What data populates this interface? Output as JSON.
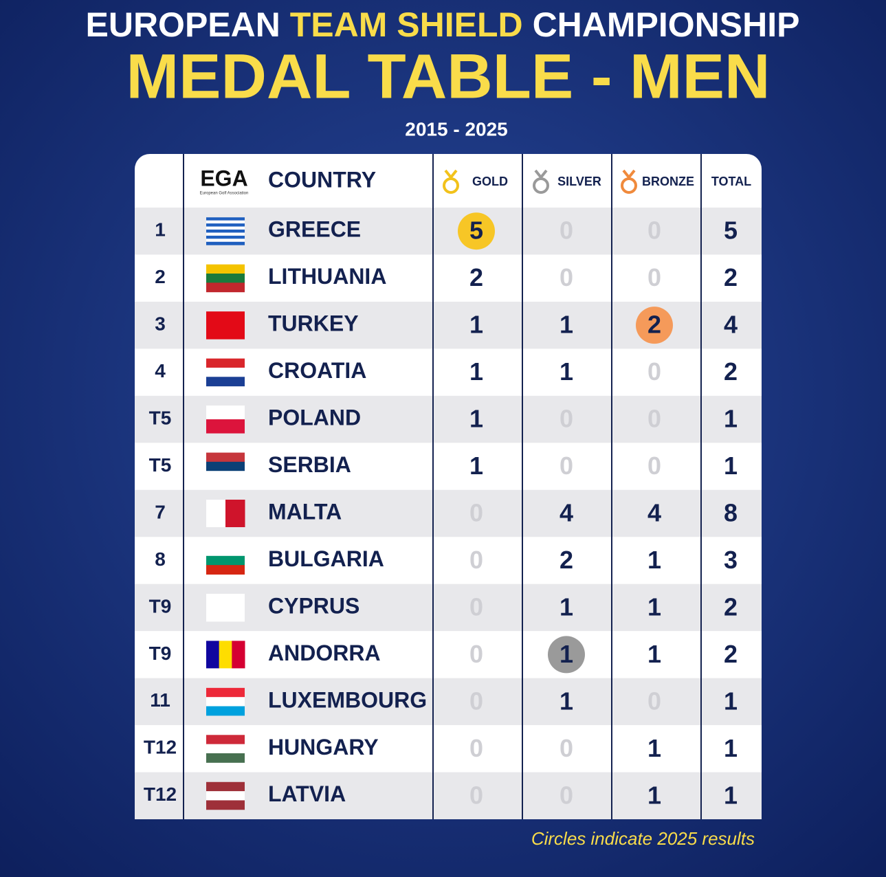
{
  "header": {
    "title_parts": [
      "EUROPEAN",
      "TEAM SHIELD",
      "CHAMPIONSHIP"
    ],
    "headline": "MEDAL TABLE - MEN",
    "years": "2015 - 2025"
  },
  "logo": {
    "mark": "EGA",
    "caption": "European Golf Association"
  },
  "table": {
    "columns": {
      "country": "COUNTRY",
      "gold": "GOLD",
      "silver": "SILVER",
      "bronze": "BRONZE",
      "total": "TOTAL"
    },
    "circle_colors": {
      "gold": "#f7c626",
      "silver": "#9a9a9a",
      "bronze": "#f59a5a"
    },
    "rows": [
      {
        "rank": "1",
        "country": "GREECE",
        "gold": 5,
        "silver": 0,
        "bronze": 0,
        "total": 5,
        "circle": "gold",
        "flag": [
          "#1f5fbf",
          "#ffffff",
          "#1f5fbf",
          "#ffffff",
          "#1f5fbf",
          "#ffffff",
          "#1f5fbf",
          "#ffffff",
          "#1f5fbf"
        ]
      },
      {
        "rank": "2",
        "country": "LITHUANIA",
        "gold": 2,
        "silver": 0,
        "bronze": 0,
        "total": 2,
        "flag": [
          "#f4c300",
          "#1a7a3c",
          "#c1272d"
        ]
      },
      {
        "rank": "3",
        "country": "TURKEY",
        "gold": 1,
        "silver": 1,
        "bronze": 2,
        "total": 4,
        "circle": "bronze",
        "flag": [
          "#e30a17"
        ]
      },
      {
        "rank": "4",
        "country": "CROATIA",
        "gold": 1,
        "silver": 1,
        "bronze": 0,
        "total": 2,
        "flag": [
          "#d9262b",
          "#ffffff",
          "#1b3f94"
        ]
      },
      {
        "rank": "T5",
        "country": "POLAND",
        "gold": 1,
        "silver": 0,
        "bronze": 0,
        "total": 1,
        "flag": [
          "#ffffff",
          "#dc143c"
        ]
      },
      {
        "rank": "T5",
        "country": "SERBIA",
        "gold": 1,
        "silver": 0,
        "bronze": 0,
        "total": 1,
        "flag": [
          "#c6363c",
          "#0c4076",
          "#ffffff"
        ]
      },
      {
        "rank": "7",
        "country": "MALTA",
        "gold": 0,
        "silver": 4,
        "bronze": 4,
        "total": 8,
        "flag_dir": "v",
        "flag": [
          "#ffffff",
          "#cf142b"
        ]
      },
      {
        "rank": "8",
        "country": "BULGARIA",
        "gold": 0,
        "silver": 2,
        "bronze": 1,
        "total": 3,
        "flag": [
          "#ffffff",
          "#00966e",
          "#d62612"
        ]
      },
      {
        "rank": "T9",
        "country": "CYPRUS",
        "gold": 0,
        "silver": 1,
        "bronze": 1,
        "total": 2,
        "flag": [
          "#ffffff"
        ]
      },
      {
        "rank": "T9",
        "country": "ANDORRA",
        "gold": 0,
        "silver": 1,
        "bronze": 1,
        "total": 2,
        "circle": "silver",
        "flag_dir": "v",
        "flag": [
          "#10069f",
          "#fedd00",
          "#d50032"
        ]
      },
      {
        "rank": "11",
        "country": "LUXEMBOURG",
        "gold": 0,
        "silver": 1,
        "bronze": 0,
        "total": 1,
        "flag": [
          "#ed2939",
          "#ffffff",
          "#00a1de"
        ]
      },
      {
        "rank": "T12",
        "country": "HUNGARY",
        "gold": 0,
        "silver": 0,
        "bronze": 1,
        "total": 1,
        "flag": [
          "#ce2939",
          "#ffffff",
          "#477050"
        ]
      },
      {
        "rank": "T12",
        "country": "LATVIA",
        "gold": 0,
        "silver": 0,
        "bronze": 1,
        "total": 1,
        "flag": [
          "#9e3039",
          "#ffffff",
          "#9e3039"
        ]
      }
    ]
  },
  "footnote": "Circles indicate 2025 results"
}
